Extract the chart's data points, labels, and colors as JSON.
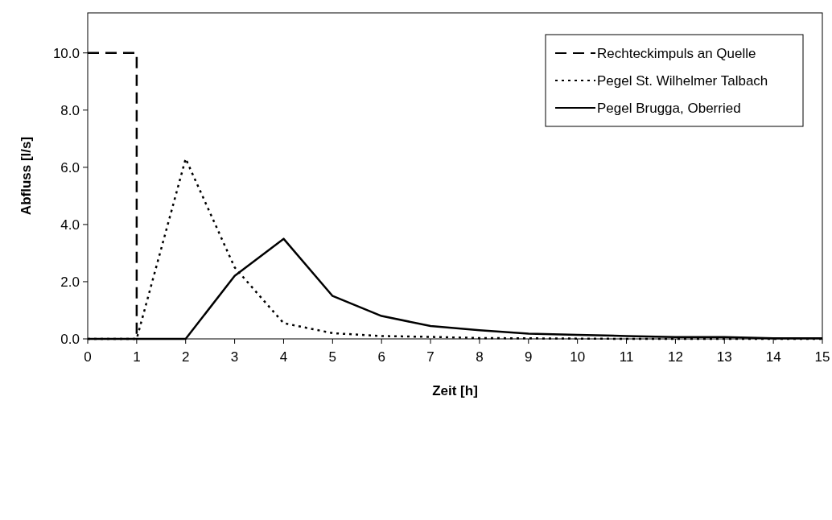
{
  "chart_data": {
    "type": "line",
    "xlabel": "Zeit [h]",
    "ylabel": "Abfluss [l/s]",
    "xlim": [
      0,
      15
    ],
    "xticks": [
      0,
      1,
      2,
      3,
      4,
      5,
      6,
      7,
      8,
      9,
      10,
      11,
      12,
      13,
      14,
      15
    ],
    "ylim": [
      0,
      11.4
    ],
    "yticks": [
      {
        "value": 0,
        "label": "0.0"
      },
      {
        "value": 2,
        "label": "2.0"
      },
      {
        "value": 4,
        "label": "4.0"
      },
      {
        "value": 6,
        "label": "6.0"
      },
      {
        "value": 8,
        "label": "8.0"
      },
      {
        "value": 10,
        "label": "10.0"
      }
    ],
    "grid": false,
    "legend": "top right",
    "series": [
      {
        "name": "Rechteckimpuls an Quelle",
        "color": "#000000",
        "line_style": "dashed",
        "x": [
          0,
          1,
          1
        ],
        "values": [
          10,
          10,
          0
        ]
      },
      {
        "name": "Pegel St. Wilhelmer Talbach",
        "color": "#000000",
        "line_style": "dotted",
        "x": [
          0,
          1,
          2,
          3,
          4,
          5,
          6,
          7,
          8,
          9,
          10,
          11,
          12,
          13,
          14,
          15
        ],
        "values": [
          0,
          0,
          6.3,
          2.5,
          0.55,
          0.2,
          0.1,
          0.07,
          0.03,
          0.02,
          0.01,
          0,
          0,
          0,
          0,
          0
        ]
      },
      {
        "name": "Pegel Brugga, Oberried",
        "color": "#000000",
        "line_style": "solid",
        "x": [
          0,
          1,
          2,
          3,
          4,
          5,
          6,
          7,
          8,
          9,
          10,
          11,
          12,
          13,
          14,
          15
        ],
        "values": [
          0,
          0,
          0,
          2.2,
          3.5,
          1.5,
          0.8,
          0.45,
          0.3,
          0.18,
          0.14,
          0.1,
          0.06,
          0.06,
          0.02,
          0.02
        ]
      }
    ]
  }
}
